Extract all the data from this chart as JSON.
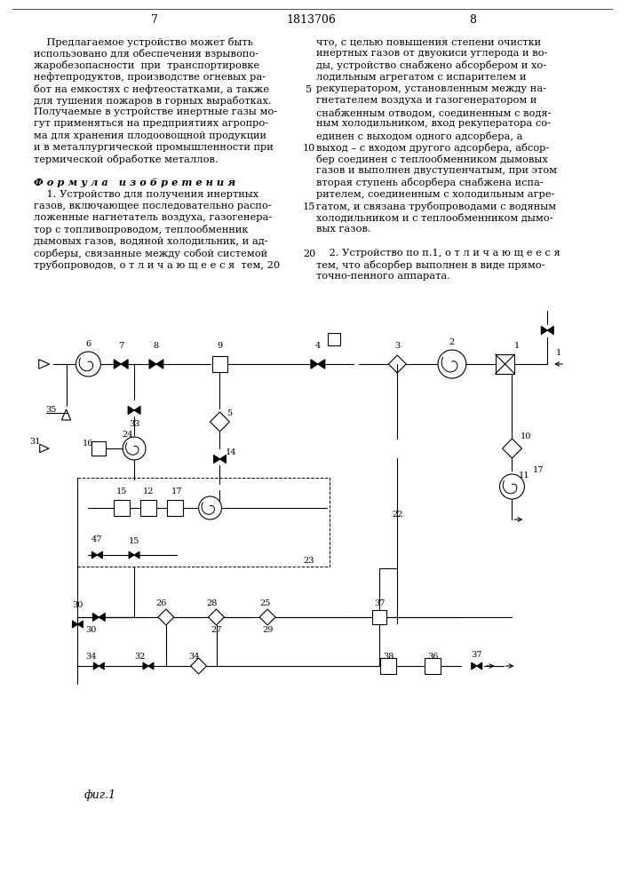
{
  "page_number_left": "7",
  "page_number_center": "1813706",
  "page_number_right": "8",
  "bg_color": "#ffffff",
  "text_color": "#000000",
  "fig_label": "фиг.1",
  "left_col_lines": [
    "    Предлагаемое устройство может быть",
    "использовано для обеспечения взрывопо-",
    "жаробезопасности  при  транспортировке",
    "нефтепродуктов, производстве огневых ра-",
    "бот на емкостях с нефтеостатками, а также",
    "для тушения пожаров в горных выработках.",
    "Получаемые в устройстве инертные газы мо-",
    "гут применяться на предприятиях агропро-",
    "ма для хранения плодоовощной продукции",
    "и в металлургической промышленности при",
    "термической обработке металлов.",
    "",
    "Ф о р м у л а   и з о б р е т е н и я",
    "    1. Устройство для получения инертных",
    "газов, включающее последовательно распо-",
    "ложенные нагнетатель воздуха, газогенера-",
    "тор с топливопроводом, теплообменник",
    "дымовых газов, водяной холодильник, и ад-",
    "сорберы, связанные между собой системой",
    "трубопроводов, о т л и ч а ю щ е е с я  тем, 20"
  ],
  "right_col_lines": [
    "что, с целью повышения степени очистки",
    "инертных газов от двуокиси углерода и во-",
    "ды, устройство снабжено абсорбером и хо-",
    "лодильным агрегатом с испарителем и",
    "рекуператором, установленным между на-",
    "гнетателем воздуха и газогенератором и",
    "снабженным отводом, соединенным с водя-",
    "ным холодильником, вход рекуператора со-",
    "единен с выходом одного адсорбера, а",
    "выход – с входом другого адсорбера, абсор-",
    "бер соединен с теплообменником дымовых",
    "газов и выполнен двуступенчатым, при этом",
    "вторая ступень абсорбера снабжена испа-",
    "рителем, соединенным с холодильным агре-",
    "гатом, и связана трубопроводами с водяным",
    "холодильником и с теплообменником дымо-",
    "вых газов.",
    "",
    "    2. Устройство по п.1, о т л и ч а ю щ е е с я",
    "тем, что абсорбер выполнен в виде прямо-",
    "точно-пенного аппарата."
  ]
}
